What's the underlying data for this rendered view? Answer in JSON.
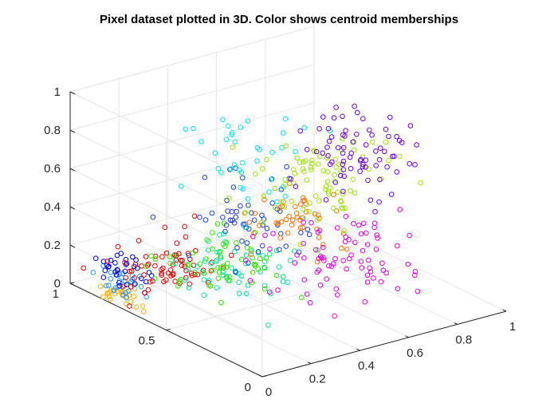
{
  "chart_data": {
    "type": "scatter",
    "title": "Pixel dataset plotted in 3D. Color shows centroid memberships",
    "xlabel": "",
    "ylabel": "",
    "zlabel": "",
    "x_ticks": [
      "0",
      "0.2",
      "0.4",
      "0.6",
      "0.8",
      "1"
    ],
    "y_ticks": [
      "0",
      "0.5",
      "1"
    ],
    "z_ticks": [
      "0",
      "0.2",
      "0.4",
      "0.6",
      "0.8",
      "1"
    ],
    "xlim": [
      0,
      1
    ],
    "ylim": [
      0,
      1
    ],
    "zlim": [
      0,
      1
    ],
    "grid": true,
    "marker": "open circle",
    "clusters": [
      {
        "color": "#ffb000",
        "center": [
          0.05,
          0.8,
          0.02
        ],
        "spread": [
          0.03,
          0.05,
          0.02
        ],
        "count": 25
      },
      {
        "color": "#1e9bff",
        "center": [
          0.07,
          0.82,
          0.06
        ],
        "spread": [
          0.03,
          0.05,
          0.03
        ],
        "count": 28
      },
      {
        "color": "#0000e6",
        "center": [
          0.1,
          0.85,
          0.1
        ],
        "spread": [
          0.04,
          0.06,
          0.04
        ],
        "count": 32
      },
      {
        "color": "#e60000",
        "center": [
          0.25,
          0.8,
          0.1
        ],
        "spread": [
          0.1,
          0.08,
          0.06
        ],
        "count": 70
      },
      {
        "color": "#00e6a0",
        "center": [
          0.35,
          0.55,
          0.18
        ],
        "spread": [
          0.1,
          0.1,
          0.06
        ],
        "count": 55
      },
      {
        "color": "#33e600",
        "center": [
          0.35,
          0.7,
          0.12
        ],
        "spread": [
          0.12,
          0.12,
          0.06
        ],
        "count": 60
      },
      {
        "color": "#1f3fd8",
        "center": [
          0.35,
          0.55,
          0.45
        ],
        "spread": [
          0.1,
          0.1,
          0.1
        ],
        "count": 55
      },
      {
        "color": "#00e6e6",
        "center": [
          0.3,
          0.5,
          0.8
        ],
        "spread": [
          0.1,
          0.1,
          0.12
        ],
        "count": 40
      },
      {
        "color": "#ff7000",
        "center": [
          0.45,
          0.4,
          0.45
        ],
        "spread": [
          0.08,
          0.08,
          0.08
        ],
        "count": 45
      },
      {
        "color": "#e600e6",
        "center": [
          0.65,
          0.45,
          0.2
        ],
        "spread": [
          0.15,
          0.15,
          0.08
        ],
        "count": 80
      },
      {
        "color": "#9be600",
        "center": [
          0.55,
          0.4,
          0.6
        ],
        "spread": [
          0.12,
          0.1,
          0.12
        ],
        "count": 80
      },
      {
        "color": "#7000e6",
        "center": [
          0.6,
          0.3,
          0.82
        ],
        "spread": [
          0.1,
          0.1,
          0.12
        ],
        "count": 75
      }
    ]
  }
}
